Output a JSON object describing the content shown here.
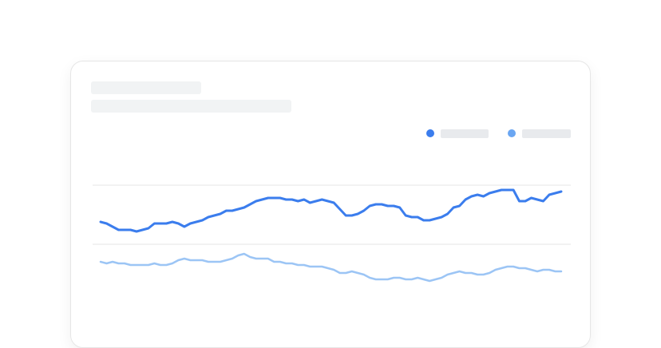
{
  "colors": {
    "series_primary": "#3b7ded",
    "series_secondary": "#9cc5f5",
    "legend_primary": "#3b7ded",
    "legend_secondary": "#6aa6f2",
    "gridline": "#e6e6e6",
    "placeholder": "#f1f3f4"
  },
  "legend": {
    "placement": "top-right",
    "items": [
      {
        "color": "#3b7ded"
      },
      {
        "color": "#6aa6f2"
      }
    ]
  },
  "chart_data": {
    "type": "line",
    "title": "",
    "subtitle": "",
    "xlabel": "",
    "ylabel": "",
    "grid": true,
    "ylim": [
      0,
      100
    ],
    "x": [
      0,
      1,
      2,
      3,
      4,
      5,
      6,
      7,
      8,
      9,
      10,
      11,
      12,
      13,
      14,
      15,
      16,
      17,
      18,
      19,
      20,
      21,
      22,
      23,
      24,
      25,
      26,
      27,
      28,
      29,
      30,
      31,
      32,
      33,
      34,
      35,
      36,
      37,
      38,
      39,
      40,
      41,
      42,
      43,
      44,
      45,
      46,
      47,
      48,
      49,
      50,
      51,
      52,
      53,
      54,
      55,
      56,
      57,
      58,
      59,
      60,
      61,
      62,
      63,
      64,
      65,
      66,
      67,
      68,
      69,
      70,
      71,
      72,
      73,
      74,
      75,
      76,
      77
    ],
    "series": [
      {
        "color": "#3b7ded",
        "values": [
          52,
          51,
          49,
          47,
          47,
          47,
          46,
          47,
          48,
          51,
          51,
          51,
          52,
          51,
          49,
          51,
          52,
          53,
          55,
          56,
          57,
          59,
          59,
          60,
          61,
          63,
          65,
          66,
          67,
          67,
          67,
          66,
          66,
          65,
          66,
          64,
          65,
          66,
          65,
          64,
          60,
          56,
          56,
          57,
          59,
          62,
          63,
          63,
          62,
          62,
          61,
          56,
          55,
          55,
          53,
          53,
          54,
          55,
          57,
          61,
          62,
          66,
          68,
          69,
          68,
          70,
          71,
          72,
          72,
          72,
          65,
          65,
          67,
          66,
          65,
          69,
          70,
          71
        ]
      },
      {
        "color": "#9cc5f5",
        "values": [
          27,
          26,
          27,
          26,
          26,
          25,
          25,
          25,
          25,
          26,
          25,
          25,
          26,
          28,
          29,
          28,
          28,
          28,
          27,
          27,
          27,
          28,
          29,
          31,
          32,
          30,
          29,
          29,
          29,
          27,
          27,
          26,
          26,
          25,
          25,
          24,
          24,
          24,
          23,
          22,
          20,
          20,
          21,
          20,
          19,
          17,
          16,
          16,
          16,
          17,
          17,
          16,
          16,
          17,
          16,
          15,
          16,
          17,
          19,
          20,
          21,
          20,
          20,
          19,
          19,
          20,
          22,
          23,
          24,
          24,
          23,
          23,
          22,
          21,
          22,
          22,
          21,
          21
        ]
      }
    ]
  }
}
